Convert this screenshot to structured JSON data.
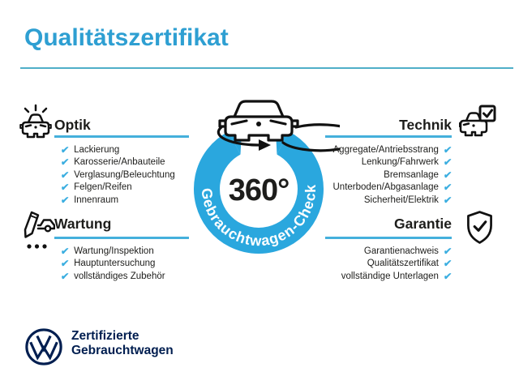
{
  "page": {
    "title": "Qualitätszertifikat"
  },
  "badge": {
    "degrees_label": "360°",
    "ring_label": "Gebrauchtwagen-Check"
  },
  "check_glyph": "✔",
  "sections": {
    "optik": {
      "title": "Optik",
      "items": [
        "Lackierung",
        "Karosserie/Anbauteile",
        "Verglasung/Beleuchtung",
        "Felgen/Reifen",
        "Innenraum"
      ]
    },
    "technik": {
      "title": "Technik",
      "items": [
        "Aggregate/Antriebsstrang",
        "Lenkung/Fahrwerk",
        "Bremsanlage",
        "Unterboden/Abgasanlage",
        "Sicherheit/Elektrik"
      ]
    },
    "wartung": {
      "title": "Wartung",
      "items": [
        "Wartung/Inspektion",
        "Hauptuntersuchung",
        "vollständiges Zubehör"
      ]
    },
    "garantie": {
      "title": "Garantie",
      "items": [
        "Garantienachweis",
        "Qualitätszertifikat",
        "vollständige Unterlagen"
      ]
    }
  },
  "footer": {
    "brand_line1": "Zertifizierte",
    "brand_line2": "Gebrauchtwagen"
  },
  "icons": {
    "optik": "car-shine-icon",
    "technik": "car-checkbox-icon",
    "wartung": "pencil-car-icon",
    "garantie": "shield-check-icon",
    "badge": "car-360-icon",
    "brand": "vw-logo"
  },
  "colors": {
    "accent_blue": "#2aa7de",
    "title_blue": "#2e9fd2",
    "underline_blue": "#45b0dc",
    "divider_teal": "#4fafc8",
    "check_blue": "#3baee0",
    "text_dark": "#1d1d1b",
    "vw_navy": "#001e50",
    "ring_text_white": "#ffffff"
  }
}
